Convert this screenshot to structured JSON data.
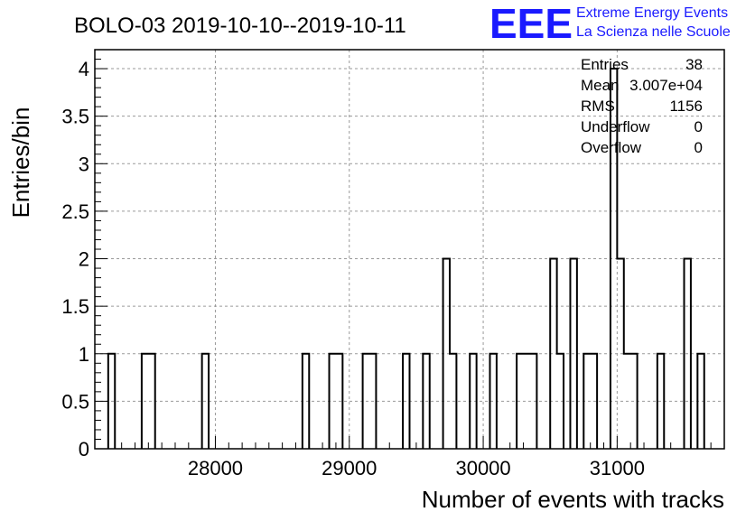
{
  "chart_data": {
    "type": "histogram",
    "title": "BOLO-03 2019-10-10--2019-10-11",
    "xlabel": "Number of events with tracks",
    "ylabel": "Entries/bin",
    "xlim": [
      27100,
      31800
    ],
    "ylim": [
      0,
      4.2
    ],
    "grid": true,
    "bin_width": 50,
    "x_ticks": [
      28000,
      29000,
      30000,
      31000
    ],
    "x_tick_labels": [
      "28000",
      "29000",
      "30000",
      "31000"
    ],
    "y_ticks": [
      0,
      0.5,
      1,
      1.5,
      2,
      2.5,
      3,
      3.5,
      4
    ],
    "y_tick_labels": [
      "0",
      "0.5",
      "1",
      "1.5",
      "2",
      "2.5",
      "3",
      "3.5",
      "4"
    ],
    "bins": [
      {
        "x": 27200,
        "count": 1
      },
      {
        "x": 27450,
        "count": 1
      },
      {
        "x": 27500,
        "count": 1
      },
      {
        "x": 27900,
        "count": 1
      },
      {
        "x": 28650,
        "count": 1
      },
      {
        "x": 28850,
        "count": 1
      },
      {
        "x": 28900,
        "count": 1
      },
      {
        "x": 29100,
        "count": 1
      },
      {
        "x": 29150,
        "count": 1
      },
      {
        "x": 29400,
        "count": 1
      },
      {
        "x": 29550,
        "count": 1
      },
      {
        "x": 29700,
        "count": 2
      },
      {
        "x": 29750,
        "count": 1
      },
      {
        "x": 29900,
        "count": 1
      },
      {
        "x": 30050,
        "count": 1
      },
      {
        "x": 30250,
        "count": 1
      },
      {
        "x": 30300,
        "count": 1
      },
      {
        "x": 30350,
        "count": 1
      },
      {
        "x": 30500,
        "count": 2
      },
      {
        "x": 30550,
        "count": 1
      },
      {
        "x": 30650,
        "count": 2
      },
      {
        "x": 30750,
        "count": 1
      },
      {
        "x": 30800,
        "count": 1
      },
      {
        "x": 30950,
        "count": 4
      },
      {
        "x": 31000,
        "count": 2
      },
      {
        "x": 31050,
        "count": 1
      },
      {
        "x": 31100,
        "count": 1
      },
      {
        "x": 31300,
        "count": 1
      },
      {
        "x": 31500,
        "count": 2
      },
      {
        "x": 31600,
        "count": 1
      }
    ],
    "stats": [
      {
        "label": "Entries",
        "value": "38"
      },
      {
        "label": "Mean",
        "value": "3.007e+04"
      },
      {
        "label": "RMS",
        "value": "1156"
      },
      {
        "label": "Underflow",
        "value": "0"
      },
      {
        "label": "Overflow",
        "value": "0"
      }
    ]
  },
  "logo": {
    "mark": "EEE",
    "line1": "Extreme Energy Events",
    "line2": "La Scienza nelle Scuole",
    "color": "#1a1aff"
  }
}
